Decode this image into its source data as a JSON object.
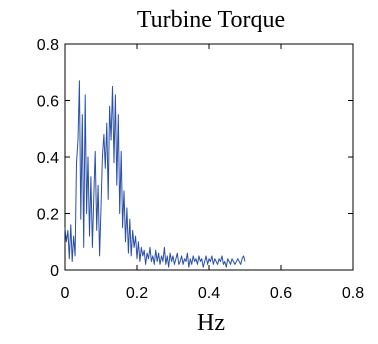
{
  "chart_data": {
    "type": "line",
    "title": "Turbine Torque",
    "xlabel": "Hz",
    "ylabel": "",
    "xlim": [
      0,
      0.8
    ],
    "ylim": [
      0,
      0.8
    ],
    "xticks": [
      "0",
      "0.2",
      "0.4",
      "0.6",
      "0.8"
    ],
    "yticks": [
      "0",
      "0.2",
      "0.4",
      "0.6",
      "0.8"
    ],
    "grid": false,
    "legend": "none",
    "series_color": "#2a4fa8",
    "series": [
      {
        "x": [
          0.0,
          0.004,
          0.008,
          0.012,
          0.016,
          0.02,
          0.024,
          0.028,
          0.032,
          0.036,
          0.04,
          0.044,
          0.048,
          0.052,
          0.056,
          0.06,
          0.064,
          0.068,
          0.072,
          0.076,
          0.08,
          0.084,
          0.088,
          0.092,
          0.096,
          0.1,
          0.104,
          0.108,
          0.112,
          0.116,
          0.12,
          0.124,
          0.128,
          0.132,
          0.136,
          0.14,
          0.144,
          0.148,
          0.152,
          0.156,
          0.16,
          0.164,
          0.168,
          0.172,
          0.176,
          0.18,
          0.184,
          0.188,
          0.192,
          0.196,
          0.2,
          0.204,
          0.208,
          0.212,
          0.216,
          0.22,
          0.224,
          0.228,
          0.232,
          0.236,
          0.24,
          0.244,
          0.248,
          0.252,
          0.256,
          0.26,
          0.264,
          0.268,
          0.272,
          0.276,
          0.28,
          0.284,
          0.288,
          0.292,
          0.296,
          0.3,
          0.304,
          0.308,
          0.312,
          0.316,
          0.32,
          0.324,
          0.328,
          0.332,
          0.336,
          0.34,
          0.344,
          0.348,
          0.352,
          0.356,
          0.36,
          0.364,
          0.368,
          0.372,
          0.376,
          0.38,
          0.384,
          0.388,
          0.392,
          0.396,
          0.4,
          0.404,
          0.408,
          0.412,
          0.416,
          0.42,
          0.424,
          0.428,
          0.432,
          0.436,
          0.44,
          0.444,
          0.448,
          0.452,
          0.456,
          0.46,
          0.464,
          0.468,
          0.472,
          0.476,
          0.48,
          0.484,
          0.488,
          0.492,
          0.496,
          0.5
        ],
        "y": [
          0.15,
          0.1,
          0.14,
          0.04,
          0.16,
          0.03,
          0.12,
          0.05,
          0.38,
          0.46,
          0.67,
          0.18,
          0.55,
          0.08,
          0.62,
          0.2,
          0.4,
          0.12,
          0.33,
          0.08,
          0.26,
          0.42,
          0.14,
          0.3,
          0.05,
          0.22,
          0.4,
          0.48,
          0.36,
          0.52,
          0.25,
          0.58,
          0.46,
          0.65,
          0.38,
          0.62,
          0.3,
          0.55,
          0.2,
          0.42,
          0.15,
          0.28,
          0.1,
          0.22,
          0.06,
          0.18,
          0.05,
          0.14,
          0.08,
          0.12,
          0.04,
          0.1,
          0.03,
          0.08,
          0.05,
          0.07,
          0.02,
          0.06,
          0.04,
          0.08,
          0.03,
          0.05,
          0.02,
          0.07,
          0.03,
          0.06,
          0.02,
          0.05,
          0.03,
          0.08,
          0.02,
          0.05,
          0.01,
          0.06,
          0.03,
          0.05,
          0.02,
          0.04,
          0.06,
          0.02,
          0.03,
          0.05,
          0.02,
          0.04,
          0.03,
          0.06,
          0.01,
          0.04,
          0.02,
          0.05,
          0.03,
          0.04,
          0.02,
          0.05,
          0.03,
          0.04,
          0.01,
          0.03,
          0.05,
          0.02,
          0.04,
          0.03,
          0.05,
          0.02,
          0.04,
          0.03,
          0.02,
          0.04,
          0.03,
          0.05,
          0.02,
          0.03,
          0.01,
          0.04,
          0.03,
          0.02,
          0.04,
          0.03,
          0.02,
          0.03,
          0.04,
          0.03,
          0.02,
          0.04,
          0.05,
          0.03
        ]
      }
    ]
  }
}
